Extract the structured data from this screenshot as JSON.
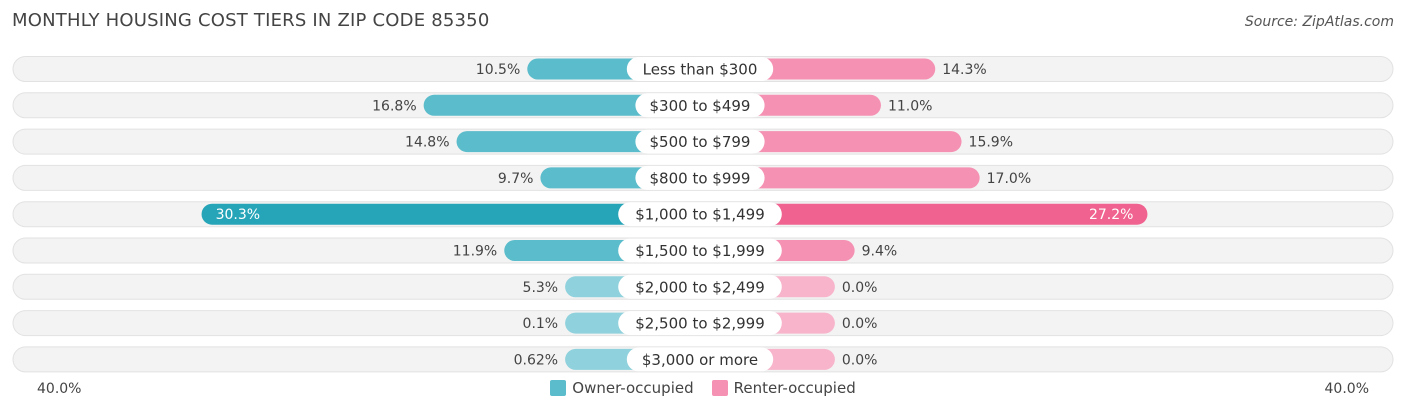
{
  "header": {
    "title": "MONTHLY HOUSING COST TIERS IN ZIP CODE 85350",
    "source": "Source: ZipAtlas.com"
  },
  "axis": {
    "left_label": "40.0%",
    "right_label": "40.0%"
  },
  "legend": {
    "owner_label": "Owner-occupied",
    "renter_label": "Renter-occupied"
  },
  "colors": {
    "owner": "#5bbccb",
    "owner_light": "#8fd1dc",
    "owner_strong": "#27a5b8",
    "renter": "#f591b2",
    "renter_light": "#f7b4cb",
    "renter_strong": "#f0628f",
    "row_bg": "#efefef"
  },
  "chart_data": {
    "type": "bar",
    "orientation": "diverging-horizontal",
    "xlim": [
      -40,
      40
    ],
    "categories": [
      "Less than $300",
      "$300 to $499",
      "$500 to $799",
      "$800 to $999",
      "$1,000 to $1,499",
      "$1,500 to $1,999",
      "$2,000 to $2,499",
      "$2,500 to $2,999",
      "$3,000 or more"
    ],
    "series": [
      {
        "name": "Owner-occupied",
        "values": [
          10.5,
          16.8,
          14.8,
          9.7,
          30.3,
          11.9,
          5.3,
          0.1,
          0.62
        ],
        "labels": [
          "10.5%",
          "16.8%",
          "14.8%",
          "9.7%",
          "30.3%",
          "11.9%",
          "5.3%",
          "0.1%",
          "0.62%"
        ]
      },
      {
        "name": "Renter-occupied",
        "values": [
          14.3,
          11.0,
          15.9,
          17.0,
          27.2,
          9.4,
          0.0,
          0.0,
          0.0
        ],
        "labels": [
          "14.3%",
          "11.0%",
          "15.9%",
          "17.0%",
          "27.2%",
          "9.4%",
          "0.0%",
          "0.0%",
          "0.0%"
        ]
      }
    ]
  }
}
